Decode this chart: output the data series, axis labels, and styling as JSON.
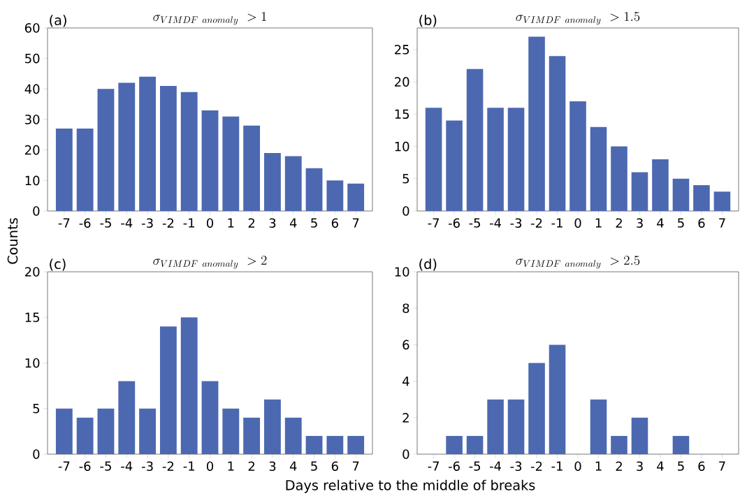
{
  "chart_data": [
    {
      "type": "bar",
      "title": "\\sigma_{VIMDF\\ anomaly}\\ >1",
      "annotations": [
        "(a)"
      ],
      "ylabel": "Counts",
      "categories": [
        "-7",
        "-6",
        "-5",
        "-4",
        "-3",
        "-2",
        "-1",
        "0",
        "1",
        "2",
        "3",
        "4",
        "5",
        "6",
        "7"
      ],
      "values": [
        27,
        27,
        40,
        42,
        44,
        41,
        39,
        33,
        31,
        28,
        19,
        18,
        14,
        10,
        9
      ],
      "color": "#4c68b0",
      "ylim": [
        0,
        60
      ],
      "yticks": [
        0,
        10,
        20,
        30,
        40,
        50,
        60
      ]
    },
    {
      "type": "bar",
      "title": "\\sigma_{VIMDF\\ anomaly}\\ >1.5",
      "annotations": [
        "(b)"
      ],
      "categories": [
        "-7",
        "-6",
        "-5",
        "-4",
        "-3",
        "-2",
        "-1",
        "0",
        "1",
        "2",
        "3",
        "4",
        "5",
        "6",
        "7"
      ],
      "values": [
        16,
        14,
        22,
        16,
        16,
        27,
        24,
        17,
        13,
        10,
        6,
        8,
        5,
        4,
        3
      ],
      "color": "#4c68b0",
      "ylim": [
        0,
        28.35
      ],
      "yticks": [
        0,
        5,
        10,
        15,
        20,
        25
      ]
    },
    {
      "type": "bar",
      "title": "\\sigma_{VIMDF\\ anomaly}\\ >2",
      "annotations": [
        "(c)"
      ],
      "xlabel": "Days relative to the middle of breaks",
      "categories": [
        "-7",
        "-6",
        "-5",
        "-4",
        "-3",
        "-2",
        "-1",
        "0",
        "1",
        "2",
        "3",
        "4",
        "5",
        "6",
        "7"
      ],
      "values": [
        5,
        4,
        5,
        8,
        5,
        14,
        15,
        8,
        5,
        4,
        6,
        4,
        2,
        2,
        2
      ],
      "color": "#4c68b0",
      "ylim": [
        0,
        20
      ],
      "yticks": [
        0,
        5,
        10,
        15,
        20
      ]
    },
    {
      "type": "bar",
      "title": "\\sigma_{VIMDF\\ anomaly}\\ >2.5",
      "annotations": [
        "(d)"
      ],
      "categories": [
        "-7",
        "-6",
        "-5",
        "-4",
        "-3",
        "-2",
        "-1",
        "0",
        "1",
        "2",
        "3",
        "4",
        "5",
        "6",
        "7"
      ],
      "values": [
        0,
        1,
        1,
        3,
        3,
        5,
        6,
        0,
        3,
        1,
        2,
        0,
        1,
        0,
        0
      ],
      "color": "#4c68b0",
      "ylim": [
        0,
        10
      ],
      "yticks": [
        0,
        2,
        4,
        6,
        8,
        10
      ]
    }
  ]
}
